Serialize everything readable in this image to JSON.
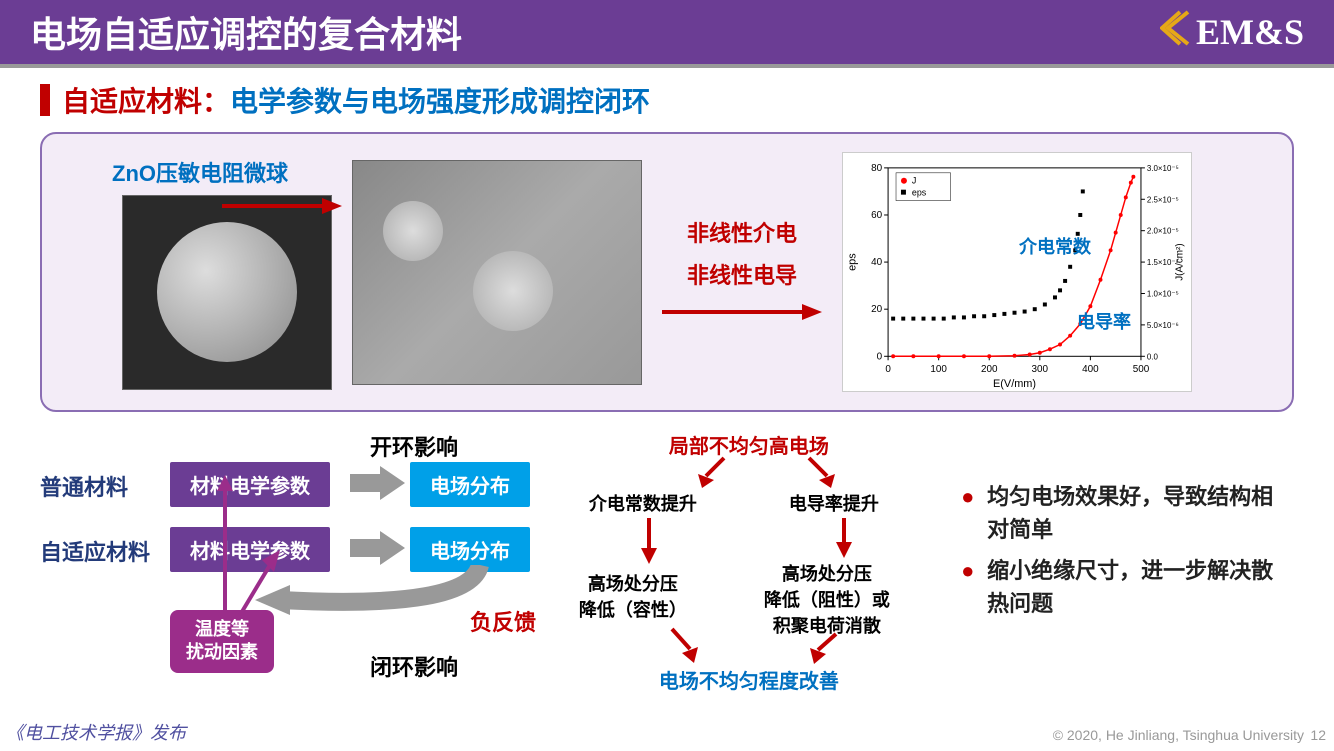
{
  "header": {
    "title": "电场自适应调控的复合材料",
    "logo_text": "EM&S"
  },
  "section": {
    "heading_red": "自适应材料：",
    "heading_blue": "电学参数与电场强度形成调控闭环"
  },
  "box": {
    "zno_label": "ZnO压敏电阻微球",
    "nonlinear1": "非线性介电",
    "nonlinear2": "非线性电导",
    "chart_label_eps": "介电常数",
    "chart_label_j": "电导率"
  },
  "chart": {
    "xlabel": "E(V/mm)",
    "ylabel_left": "eps",
    "ylabel_right": "J(A/cm²)",
    "x_ticks": [
      0,
      100,
      200,
      300,
      400,
      500
    ],
    "y_left_ticks": [
      0,
      20,
      40,
      60,
      80
    ],
    "y_right_ticks": [
      "0.0",
      "5.0×10⁻⁶",
      "1.0×10⁻⁵",
      "1.5×10⁻⁵",
      "2.0×10⁻⁵",
      "2.5×10⁻⁵",
      "3.0×10⁻⁵"
    ],
    "legend": [
      "J",
      "eps"
    ],
    "eps_color": "#000000",
    "j_color": "#ff0000",
    "eps_data": [
      [
        10,
        16
      ],
      [
        30,
        16
      ],
      [
        50,
        16
      ],
      [
        70,
        16
      ],
      [
        90,
        16
      ],
      [
        110,
        16
      ],
      [
        130,
        16.5
      ],
      [
        150,
        16.5
      ],
      [
        170,
        17
      ],
      [
        190,
        17
      ],
      [
        210,
        17.5
      ],
      [
        230,
        18
      ],
      [
        250,
        18.5
      ],
      [
        270,
        19
      ],
      [
        290,
        20
      ],
      [
        310,
        22
      ],
      [
        330,
        25
      ],
      [
        340,
        28
      ],
      [
        350,
        32
      ],
      [
        360,
        38
      ],
      [
        370,
        45
      ],
      [
        375,
        52
      ],
      [
        380,
        60
      ],
      [
        385,
        70
      ]
    ],
    "j_data": [
      [
        10,
        0
      ],
      [
        50,
        0
      ],
      [
        100,
        0
      ],
      [
        150,
        0
      ],
      [
        200,
        0
      ],
      [
        250,
        0.01
      ],
      [
        280,
        0.03
      ],
      [
        300,
        0.06
      ],
      [
        320,
        0.12
      ],
      [
        340,
        0.2
      ],
      [
        360,
        0.35
      ],
      [
        380,
        0.55
      ],
      [
        400,
        0.85
      ],
      [
        420,
        1.3
      ],
      [
        440,
        1.8
      ],
      [
        450,
        2.1
      ],
      [
        460,
        2.4
      ],
      [
        470,
        2.7
      ],
      [
        480,
        2.95
      ],
      [
        485,
        3.05
      ]
    ],
    "xlim": [
      0,
      500
    ],
    "ylim_left": [
      0,
      80
    ],
    "ylim_right": [
      0,
      3.2
    ]
  },
  "feedback": {
    "open_loop_label": "开环影响",
    "closed_loop_label": "闭环影响",
    "neg_feedback": "负反馈",
    "normal_material": "普通材料",
    "adaptive_material": "自适应材料",
    "box_params": "材料电学参数",
    "box_field": "电场分布",
    "box_disturb": "温度等\n扰动因素",
    "colors": {
      "purple": "#6b3d94",
      "blue": "#00a0e8",
      "magenta": "#9b2d8a",
      "red": "#c00000",
      "navy": "#233b7a"
    }
  },
  "cycle": {
    "top": "局部不均匀高电场",
    "left1": "介电常数提升",
    "right1": "电导率提升",
    "left2": "高场处分压\n降低（容性）",
    "right2": "高场处分压\n降低（阻性）或\n积聚电荷消散",
    "bottom": "电场不均匀程度改善",
    "arrow_color": "#c00000",
    "text_color": "#000000",
    "top_color": "#c00000",
    "bottom_color": "#0070c0"
  },
  "bullets": [
    "均匀电场效果好，导致结构相对简单",
    "缩小绝缘尺寸，进一步解决散热问题"
  ],
  "footer": {
    "left": "《电工技术学报》发布",
    "right": "© 2020, He Jinliang, Tsinghua University",
    "page": "12"
  }
}
